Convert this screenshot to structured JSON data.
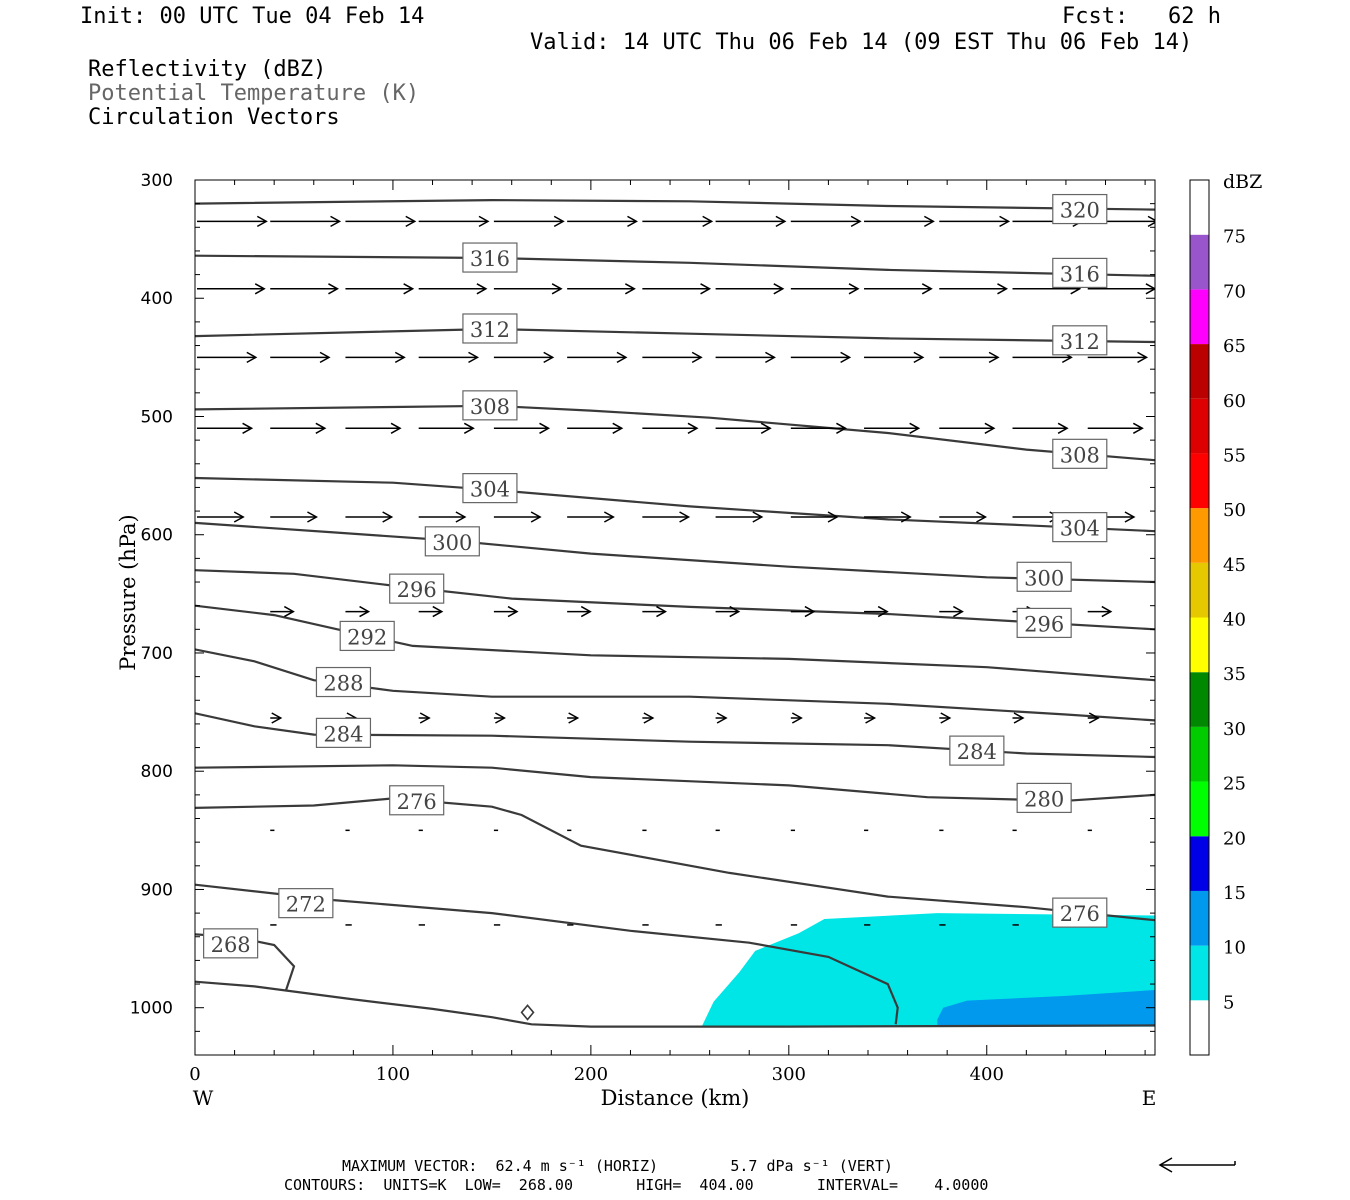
{
  "header": {
    "init": "Init: 00 UTC Tue 04 Feb 14",
    "fcst": "Fcst:   62 h",
    "valid": "Valid: 14 UTC Thu 06 Feb 14 (09 EST Thu 06 Feb 14)",
    "field1": "Reflectivity (dBZ)",
    "field2": "Potential Temperature (K)",
    "field3": "Circulation Vectors"
  },
  "colors": {
    "contour": "#3a3a3a",
    "field2_text": "#666666",
    "refl_5": "#00e6e6",
    "refl_10": "#0099ee"
  },
  "chart_data": {
    "type": "cross-section",
    "xlabel": "Distance (km)",
    "ylabel": "Pressure (hPa)",
    "xlim": [
      0,
      485
    ],
    "ylim": [
      1040,
      300
    ],
    "x_ticks": [
      0,
      100,
      200,
      300,
      400
    ],
    "y_ticks": [
      300,
      400,
      500,
      600,
      700,
      800,
      900,
      1000
    ],
    "left_end_label": "W",
    "right_end_label": "E",
    "colorbar": {
      "unit": "dBZ",
      "levels": [
        5,
        10,
        15,
        20,
        25,
        30,
        35,
        40,
        45,
        50,
        55,
        60,
        65,
        70,
        75
      ],
      "colors": [
        "#ffffff",
        "#00e6e6",
        "#0099ee",
        "#0000e6",
        "#00ff00",
        "#00cc00",
        "#008800",
        "#ffff00",
        "#e6c800",
        "#ff9900",
        "#ff0000",
        "#dd0000",
        "#bb0000",
        "#ff00ff",
        "#9955cc",
        "#ffffff"
      ]
    },
    "reflectivity": [
      {
        "level": 5,
        "polygon": [
          [
            256,
            1016
          ],
          [
            262,
            995
          ],
          [
            275,
            970
          ],
          [
            283,
            952
          ],
          [
            305,
            937
          ],
          [
            318,
            925
          ],
          [
            375,
            920
          ],
          [
            485,
            922
          ],
          [
            485,
            1016
          ]
        ]
      },
      {
        "level": 10,
        "polygon": [
          [
            375,
            1010
          ],
          [
            378,
            1000
          ],
          [
            390,
            994
          ],
          [
            440,
            990
          ],
          [
            485,
            985
          ],
          [
            485,
            1016
          ],
          [
            375,
            1016
          ]
        ]
      }
    ],
    "theta_contours": [
      {
        "value": 320,
        "points": [
          [
            0,
            320
          ],
          [
            150,
            317
          ],
          [
            250,
            318
          ],
          [
            350,
            322
          ],
          [
            485,
            325
          ]
        ],
        "labels": [
          [
            447,
            325
          ]
        ]
      },
      {
        "value": 316,
        "points": [
          [
            0,
            364
          ],
          [
            150,
            366
          ],
          [
            250,
            370
          ],
          [
            350,
            376
          ],
          [
            485,
            381
          ]
        ],
        "labels": [
          [
            149,
            366
          ],
          [
            447,
            379
          ]
        ]
      },
      {
        "value": 312,
        "points": [
          [
            0,
            432
          ],
          [
            150,
            426
          ],
          [
            250,
            430
          ],
          [
            350,
            434
          ],
          [
            485,
            437
          ]
        ],
        "labels": [
          [
            149,
            426
          ],
          [
            447,
            436
          ]
        ]
      },
      {
        "value": 308,
        "points": [
          [
            0,
            494
          ],
          [
            100,
            492
          ],
          [
            150,
            491
          ],
          [
            200,
            495
          ],
          [
            260,
            501
          ],
          [
            350,
            514
          ],
          [
            420,
            528
          ],
          [
            485,
            537
          ]
        ],
        "labels": [
          [
            149,
            491
          ],
          [
            447,
            532
          ]
        ]
      },
      {
        "value": 304,
        "points": [
          [
            0,
            552
          ],
          [
            100,
            556
          ],
          [
            150,
            562
          ],
          [
            250,
            576
          ],
          [
            350,
            587
          ],
          [
            420,
            592
          ],
          [
            485,
            597
          ]
        ],
        "labels": [
          [
            149,
            561
          ],
          [
            447,
            594
          ]
        ]
      },
      {
        "value": 300,
        "points": [
          [
            0,
            590
          ],
          [
            70,
            598
          ],
          [
            130,
            605
          ],
          [
            200,
            616
          ],
          [
            300,
            627
          ],
          [
            400,
            636
          ],
          [
            485,
            640
          ]
        ],
        "labels": [
          [
            130,
            606
          ],
          [
            429,
            636
          ]
        ]
      },
      {
        "value": 296,
        "points": [
          [
            0,
            630
          ],
          [
            50,
            633
          ],
          [
            100,
            643
          ],
          [
            160,
            654
          ],
          [
            250,
            661
          ],
          [
            350,
            667
          ],
          [
            485,
            680
          ]
        ],
        "labels": [
          [
            112,
            646
          ],
          [
            429,
            675
          ]
        ]
      },
      {
        "value": 292,
        "points": [
          [
            0,
            660
          ],
          [
            40,
            668
          ],
          [
            80,
            683
          ],
          [
            110,
            694
          ],
          [
            200,
            702
          ],
          [
            300,
            705
          ],
          [
            400,
            712
          ],
          [
            485,
            723
          ]
        ],
        "labels": [
          [
            87,
            686
          ]
        ]
      },
      {
        "value": 288,
        "points": [
          [
            0,
            697
          ],
          [
            30,
            707
          ],
          [
            60,
            723
          ],
          [
            100,
            732
          ],
          [
            150,
            737
          ],
          [
            250,
            737
          ],
          [
            350,
            743
          ],
          [
            440,
            752
          ],
          [
            485,
            757
          ]
        ],
        "labels": [
          [
            75,
            725
          ]
        ]
      },
      {
        "value": 284,
        "points": [
          [
            0,
            751
          ],
          [
            30,
            762
          ],
          [
            60,
            769
          ],
          [
            150,
            770
          ],
          [
            250,
            775
          ],
          [
            350,
            778
          ],
          [
            420,
            785
          ],
          [
            485,
            788
          ]
        ],
        "labels": [
          [
            75,
            768
          ],
          [
            395,
            783
          ]
        ]
      },
      {
        "value": 280,
        "points": [
          [
            0,
            797
          ],
          [
            100,
            795
          ],
          [
            150,
            797
          ],
          [
            200,
            805
          ],
          [
            300,
            812
          ],
          [
            370,
            822
          ],
          [
            440,
            825
          ],
          [
            485,
            820
          ]
        ],
        "labels": [
          [
            429,
            823
          ]
        ]
      },
      {
        "value": 276,
        "points": [
          [
            0,
            831
          ],
          [
            60,
            829
          ],
          [
            100,
            823
          ],
          [
            150,
            830
          ],
          [
            165,
            837
          ],
          [
            195,
            863
          ],
          [
            270,
            886
          ],
          [
            350,
            906
          ],
          [
            420,
            915
          ],
          [
            485,
            926
          ]
        ],
        "labels": [
          [
            112,
            825
          ],
          [
            447,
            920
          ]
        ]
      },
      {
        "value": 272,
        "points": [
          [
            0,
            896
          ],
          [
            70,
            909
          ],
          [
            150,
            920
          ],
          [
            220,
            935
          ],
          [
            280,
            945
          ],
          [
            320,
            957
          ],
          [
            350,
            980
          ],
          [
            355,
            1000
          ],
          [
            354,
            1014
          ]
        ],
        "labels": [
          [
            56,
            912
          ]
        ]
      },
      {
        "value": 268,
        "points": [
          [
            0,
            938
          ],
          [
            20,
            940
          ],
          [
            40,
            947
          ],
          [
            50,
            965
          ],
          [
            46,
            985
          ]
        ],
        "labels": [
          [
            18,
            946
          ]
        ]
      }
    ],
    "surface": [
      [
        0,
        978
      ],
      [
        30,
        982
      ],
      [
        80,
        993
      ],
      [
        120,
        1001
      ],
      [
        150,
        1008
      ],
      [
        170,
        1014
      ],
      [
        200,
        1016
      ],
      [
        300,
        1016
      ],
      [
        485,
        1015
      ]
    ],
    "vectors": [
      {
        "p": 335,
        "xs": [
          0,
          37,
          75,
          112,
          150,
          187,
          225,
          262,
          300,
          337,
          375,
          412,
          450
        ],
        "length": 33
      },
      {
        "p": 392,
        "xs": [
          0,
          37,
          75,
          112,
          150,
          187,
          225,
          262,
          300,
          337,
          375,
          412,
          450
        ],
        "length": 32
      },
      {
        "p": 450,
        "xs": [
          0,
          37,
          75,
          112,
          150,
          187,
          225,
          262,
          300,
          337,
          375,
          412,
          450
        ],
        "length": 28
      },
      {
        "p": 510,
        "xs": [
          0,
          37,
          75,
          112,
          150,
          187,
          225,
          262,
          300,
          337,
          375,
          412,
          450
        ],
        "length": 26
      },
      {
        "p": 585,
        "xs": [
          0,
          37,
          75,
          112,
          150,
          187,
          225,
          262,
          300,
          337,
          375,
          412,
          450
        ],
        "length": 22
      },
      {
        "p": 665,
        "xs": [
          37,
          75,
          112,
          150,
          187,
          225,
          262,
          300,
          337,
          375,
          412,
          450
        ],
        "length": 11
      },
      {
        "p": 755,
        "xs": [
          37,
          75,
          112,
          150,
          187,
          225,
          262,
          300,
          337,
          375,
          412,
          450
        ],
        "length": 5
      },
      {
        "p": 850,
        "xs": [
          37,
          75,
          112,
          150,
          187,
          225,
          262,
          300,
          337,
          375,
          412,
          450
        ],
        "length": 2
      },
      {
        "p": 930,
        "xs": [
          37,
          75,
          112,
          150,
          187,
          225,
          262,
          300,
          337,
          375,
          412,
          450
        ],
        "length": 3
      }
    ]
  },
  "footer": {
    "max_vector": "MAXIMUM VECTOR:  62.4 m s⁻¹ (HORIZ)        5.7 dPa s⁻¹ (VERT)",
    "contours": "CONTOURS:  UNITS=K  LOW=  268.00       HIGH=  404.00       INTERVAL=    4.0000"
  }
}
